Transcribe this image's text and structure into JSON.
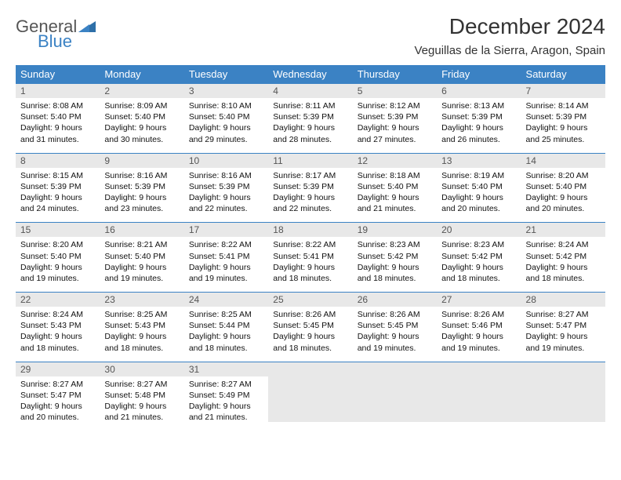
{
  "logo": {
    "word1": "General",
    "word2": "Blue"
  },
  "title": "December 2024",
  "location": "Veguillas de la Sierra, Aragon, Spain",
  "colors": {
    "header_bg": "#3b82c4",
    "daynum_bg": "#e8e8e8",
    "rule": "#3b82c4",
    "text": "#111111"
  },
  "weekdays": [
    "Sunday",
    "Monday",
    "Tuesday",
    "Wednesday",
    "Thursday",
    "Friday",
    "Saturday"
  ],
  "weeks": [
    [
      {
        "n": "1",
        "sr": "8:08 AM",
        "ss": "5:40 PM",
        "dl": "9 hours and 31 minutes."
      },
      {
        "n": "2",
        "sr": "8:09 AM",
        "ss": "5:40 PM",
        "dl": "9 hours and 30 minutes."
      },
      {
        "n": "3",
        "sr": "8:10 AM",
        "ss": "5:40 PM",
        "dl": "9 hours and 29 minutes."
      },
      {
        "n": "4",
        "sr": "8:11 AM",
        "ss": "5:39 PM",
        "dl": "9 hours and 28 minutes."
      },
      {
        "n": "5",
        "sr": "8:12 AM",
        "ss": "5:39 PM",
        "dl": "9 hours and 27 minutes."
      },
      {
        "n": "6",
        "sr": "8:13 AM",
        "ss": "5:39 PM",
        "dl": "9 hours and 26 minutes."
      },
      {
        "n": "7",
        "sr": "8:14 AM",
        "ss": "5:39 PM",
        "dl": "9 hours and 25 minutes."
      }
    ],
    [
      {
        "n": "8",
        "sr": "8:15 AM",
        "ss": "5:39 PM",
        "dl": "9 hours and 24 minutes."
      },
      {
        "n": "9",
        "sr": "8:16 AM",
        "ss": "5:39 PM",
        "dl": "9 hours and 23 minutes."
      },
      {
        "n": "10",
        "sr": "8:16 AM",
        "ss": "5:39 PM",
        "dl": "9 hours and 22 minutes."
      },
      {
        "n": "11",
        "sr": "8:17 AM",
        "ss": "5:39 PM",
        "dl": "9 hours and 22 minutes."
      },
      {
        "n": "12",
        "sr": "8:18 AM",
        "ss": "5:40 PM",
        "dl": "9 hours and 21 minutes."
      },
      {
        "n": "13",
        "sr": "8:19 AM",
        "ss": "5:40 PM",
        "dl": "9 hours and 20 minutes."
      },
      {
        "n": "14",
        "sr": "8:20 AM",
        "ss": "5:40 PM",
        "dl": "9 hours and 20 minutes."
      }
    ],
    [
      {
        "n": "15",
        "sr": "8:20 AM",
        "ss": "5:40 PM",
        "dl": "9 hours and 19 minutes."
      },
      {
        "n": "16",
        "sr": "8:21 AM",
        "ss": "5:40 PM",
        "dl": "9 hours and 19 minutes."
      },
      {
        "n": "17",
        "sr": "8:22 AM",
        "ss": "5:41 PM",
        "dl": "9 hours and 19 minutes."
      },
      {
        "n": "18",
        "sr": "8:22 AM",
        "ss": "5:41 PM",
        "dl": "9 hours and 18 minutes."
      },
      {
        "n": "19",
        "sr": "8:23 AM",
        "ss": "5:42 PM",
        "dl": "9 hours and 18 minutes."
      },
      {
        "n": "20",
        "sr": "8:23 AM",
        "ss": "5:42 PM",
        "dl": "9 hours and 18 minutes."
      },
      {
        "n": "21",
        "sr": "8:24 AM",
        "ss": "5:42 PM",
        "dl": "9 hours and 18 minutes."
      }
    ],
    [
      {
        "n": "22",
        "sr": "8:24 AM",
        "ss": "5:43 PM",
        "dl": "9 hours and 18 minutes."
      },
      {
        "n": "23",
        "sr": "8:25 AM",
        "ss": "5:43 PM",
        "dl": "9 hours and 18 minutes."
      },
      {
        "n": "24",
        "sr": "8:25 AM",
        "ss": "5:44 PM",
        "dl": "9 hours and 18 minutes."
      },
      {
        "n": "25",
        "sr": "8:26 AM",
        "ss": "5:45 PM",
        "dl": "9 hours and 18 minutes."
      },
      {
        "n": "26",
        "sr": "8:26 AM",
        "ss": "5:45 PM",
        "dl": "9 hours and 19 minutes."
      },
      {
        "n": "27",
        "sr": "8:26 AM",
        "ss": "5:46 PM",
        "dl": "9 hours and 19 minutes."
      },
      {
        "n": "28",
        "sr": "8:27 AM",
        "ss": "5:47 PM",
        "dl": "9 hours and 19 minutes."
      }
    ],
    [
      {
        "n": "29",
        "sr": "8:27 AM",
        "ss": "5:47 PM",
        "dl": "9 hours and 20 minutes."
      },
      {
        "n": "30",
        "sr": "8:27 AM",
        "ss": "5:48 PM",
        "dl": "9 hours and 21 minutes."
      },
      {
        "n": "31",
        "sr": "8:27 AM",
        "ss": "5:49 PM",
        "dl": "9 hours and 21 minutes."
      },
      null,
      null,
      null,
      null
    ]
  ],
  "labels": {
    "sunrise": "Sunrise:",
    "sunset": "Sunset:",
    "daylight": "Daylight:"
  }
}
